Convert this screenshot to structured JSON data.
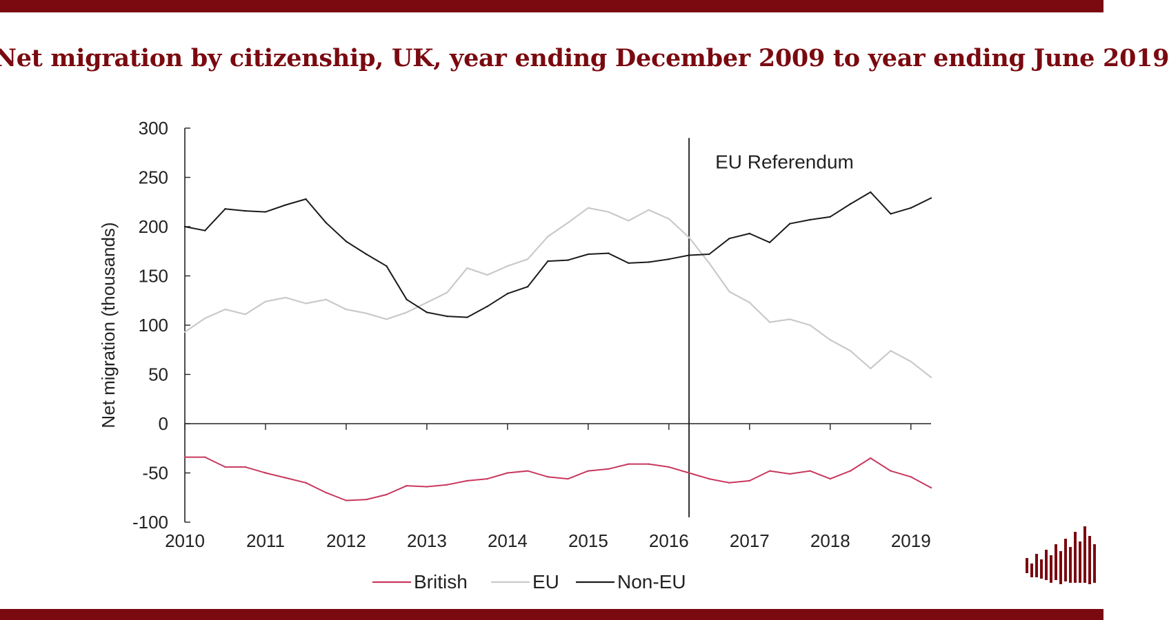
{
  "page": {
    "title": "Net migration by citizenship, UK, year ending December 2009 to year ending June 2019"
  },
  "brand": {
    "bar_color": "#7a0a10",
    "logo": "bar-logo-icon"
  },
  "chart_data": {
    "type": "line",
    "title": "Net migration by citizenship, UK, year ending December 2009 to year ending June 2019",
    "ylabel": "Net migration (thousands)",
    "xlabel": "",
    "ylim": [
      -100,
      300
    ],
    "xlim": [
      2010,
      2019.25
    ],
    "yticks": [
      300,
      250,
      200,
      150,
      100,
      50,
      0,
      -50,
      -100
    ],
    "xticks": [
      2010,
      2011,
      2012,
      2013,
      2014,
      2015,
      2016,
      2017,
      2018,
      2019
    ],
    "xtick_labels": [
      "2010",
      "2011",
      "2012",
      "2013",
      "2014",
      "2015",
      "2016",
      "2017",
      "2018",
      "2019"
    ],
    "grid": false,
    "legend_position": "bottom",
    "annotation": {
      "x": 2016.25,
      "label": "EU Referendum"
    },
    "x": [
      2010,
      2010.25,
      2010.5,
      2010.75,
      2011,
      2011.25,
      2011.5,
      2011.75,
      2012,
      2012.25,
      2012.5,
      2012.75,
      2013,
      2013.25,
      2013.5,
      2013.75,
      2014,
      2014.25,
      2014.5,
      2014.75,
      2015,
      2015.25,
      2015.5,
      2015.75,
      2016,
      2016.25,
      2016.5,
      2016.75,
      2017,
      2017.25,
      2017.5,
      2017.75,
      2018,
      2018.25,
      2018.5,
      2018.75,
      2019,
      2019.25
    ],
    "series": [
      {
        "name": "British",
        "color": "#c8375d",
        "values": [
          -34,
          -34,
          -44,
          -44,
          -50,
          -55,
          -60,
          -70,
          -78,
          -77,
          -72,
          -63,
          -64,
          -62,
          -58,
          -56,
          -50,
          -48,
          -54,
          -56,
          -48,
          -46,
          -41,
          -41,
          -44,
          -50,
          -56,
          -60,
          -58,
          -48,
          -51,
          -48,
          -56,
          -48,
          -35,
          -48,
          -54,
          -65
        ]
      },
      {
        "name": "EU",
        "color": "#c9c9c9",
        "values": [
          93,
          107,
          116,
          111,
          124,
          128,
          122,
          126,
          116,
          112,
          106,
          113,
          123,
          133,
          158,
          151,
          160,
          167,
          190,
          204,
          219,
          215,
          206,
          217,
          208,
          189,
          163,
          134,
          123,
          103,
          106,
          100,
          85,
          74,
          56,
          74,
          63,
          47
        ]
      },
      {
        "name": "Non-EU",
        "color": "#1a1a1a",
        "values": [
          200,
          196,
          218,
          216,
          215,
          222,
          228,
          204,
          185,
          172,
          160,
          126,
          113,
          109,
          108,
          119,
          132,
          139,
          165,
          166,
          172,
          173,
          163,
          164,
          167,
          171,
          172,
          188,
          193,
          184,
          203,
          207,
          210,
          223,
          235,
          213,
          219,
          229
        ]
      }
    ]
  }
}
